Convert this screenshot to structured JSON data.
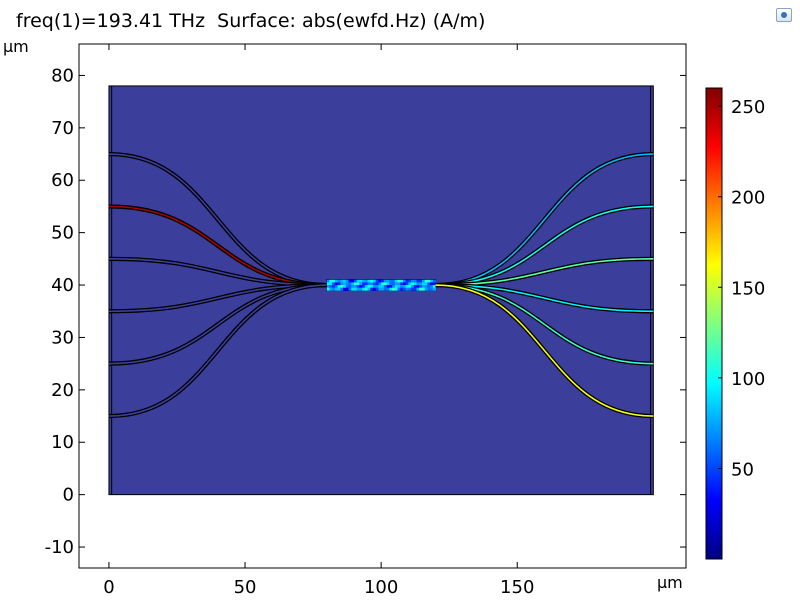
{
  "plot_title": "freq(1)=193.41 THz  Surface: abs(ewfd.Hz) (A/m)",
  "y_unit": "µm",
  "x_unit": "µm",
  "chart_data": {
    "type": "heatmap",
    "title": "freq(1)=193.41 THz  Surface: abs(ewfd.Hz) (A/m)",
    "xlabel": "µm",
    "ylabel": "µm",
    "xlim": [
      -11,
      212
    ],
    "ylim": [
      -14,
      86
    ],
    "x_ticks": [
      0,
      50,
      100,
      150
    ],
    "y_ticks": [
      -10,
      0,
      10,
      20,
      30,
      40,
      50,
      60,
      70,
      80
    ],
    "domain": {
      "x": [
        0,
        200
      ],
      "y": [
        0,
        78
      ]
    },
    "background_value": 20,
    "mmi_section": {
      "x": [
        80,
        120
      ],
      "y": [
        39,
        41
      ]
    },
    "colorbar": {
      "range": [
        0,
        260
      ],
      "ticks": [
        50,
        100,
        150,
        200,
        250
      ],
      "colormap": "rainbow"
    },
    "waveguides": [
      {
        "side": "left",
        "y_end": 65,
        "value": 0
      },
      {
        "side": "left",
        "y_end": 55,
        "value": 250
      },
      {
        "side": "left",
        "y_end": 45,
        "value": 0
      },
      {
        "side": "left",
        "y_end": 35,
        "value": 0
      },
      {
        "side": "left",
        "y_end": 25,
        "value": 0
      },
      {
        "side": "left",
        "y_end": 15,
        "value": 0
      },
      {
        "side": "right",
        "y_end": 65,
        "value": 80
      },
      {
        "side": "right",
        "y_end": 55,
        "value": 100
      },
      {
        "side": "right",
        "y_end": 45,
        "value": 120
      },
      {
        "side": "right",
        "y_end": 35,
        "value": 95
      },
      {
        "side": "right",
        "y_end": 25,
        "value": 110
      },
      {
        "side": "right",
        "y_end": 15,
        "value": 160
      }
    ]
  }
}
